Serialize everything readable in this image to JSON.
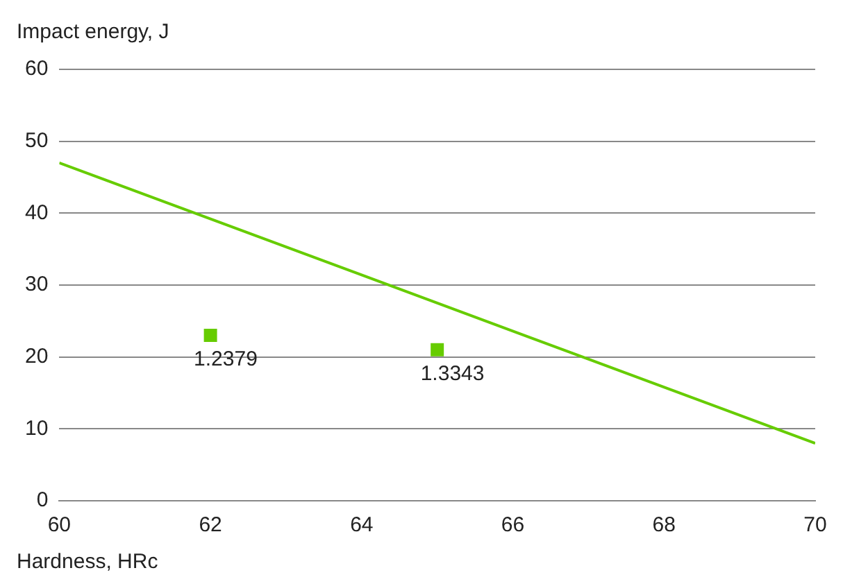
{
  "chart_data": {
    "type": "scatter",
    "xlabel": "Hardness, HRc",
    "ylabel": "Impact energy, J",
    "xlim": [
      60,
      70
    ],
    "xticks": [
      60,
      62,
      64,
      66,
      68,
      70
    ],
    "ylim": [
      0,
      60
    ],
    "yticks": [
      0,
      10,
      20,
      30,
      40,
      50,
      60
    ],
    "grid": "y",
    "legend": false,
    "series": [
      {
        "type": "line",
        "color": "#66cc00",
        "x": [
          60,
          70
        ],
        "values": [
          47,
          8
        ],
        "marker": "none"
      },
      {
        "color": "#66cc00",
        "x": [
          62,
          65
        ],
        "values": [
          23,
          21
        ],
        "marker": "square"
      }
    ],
    "annotations": [
      {
        "text": "1.2379",
        "x": 62,
        "y": 23
      },
      {
        "text": "1.3343",
        "x": 65,
        "y": 21
      }
    ]
  }
}
